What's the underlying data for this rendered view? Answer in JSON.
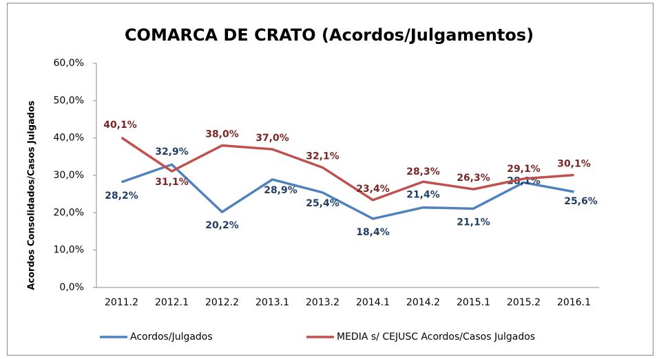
{
  "chart_data": {
    "type": "line",
    "title": "COMARCA DE CRATO (Acordos/Julgamentos)",
    "y_axis_label": "Acordos Consolidados/Casos Julgados",
    "categories": [
      "2011.2",
      "2012.1",
      "2012.2",
      "2013.1",
      "2013.2",
      "2014.1",
      "2014.2",
      "2015.1",
      "2015.2",
      "2016.1"
    ],
    "series": [
      {
        "name": "Acordos/Julgados",
        "color": "#4f81bd",
        "values": [
          28.2,
          32.9,
          20.2,
          28.9,
          25.4,
          18.4,
          21.4,
          21.1,
          28.1,
          25.6
        ],
        "value_labels": [
          "28,2%",
          "32,9%",
          "20,2%",
          "28,9%",
          "25,4%",
          "18,4%",
          "21,4%",
          "21,1%",
          "28,1%",
          "25,6%"
        ]
      },
      {
        "name": "MEDIA s/ CEJUSC Acordos/Casos Julgados",
        "color": "#c0504d",
        "values": [
          40.1,
          31.1,
          38.0,
          37.0,
          32.1,
          23.4,
          28.3,
          26.3,
          29.1,
          30.1
        ],
        "value_labels": [
          "40,1%",
          "31,1%",
          "38,0%",
          "37,0%",
          "32,1%",
          "23,4%",
          "28,3%",
          "26,3%",
          "29,1%",
          "30,1%"
        ]
      }
    ],
    "ylim": [
      0,
      60
    ],
    "yticks": [
      {
        "value": 0,
        "label": "0,0%"
      },
      {
        "value": 10,
        "label": "10,0%"
      },
      {
        "value": 20,
        "label": "20,0%"
      },
      {
        "value": 30,
        "label": "30,0%"
      },
      {
        "value": 40,
        "label": "40,0%"
      },
      {
        "value": 50,
        "label": "50,0%"
      },
      {
        "value": 60,
        "label": "60,0%"
      }
    ],
    "legend": "bottom"
  }
}
